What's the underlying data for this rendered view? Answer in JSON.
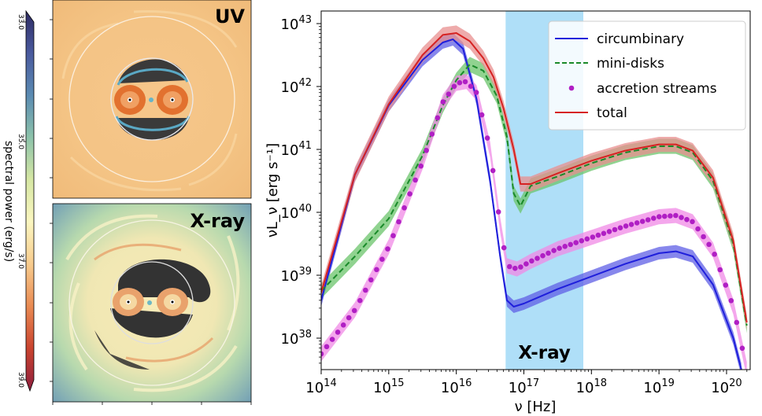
{
  "colorbar": {
    "label": "spectral power (erg/s)",
    "ticks": [
      "33.0",
      "35.0",
      "37.0",
      "39.0"
    ],
    "range": [
      33.0,
      39.0
    ],
    "colors": [
      "#2e2b63",
      "#4a5a9e",
      "#5b8bb2",
      "#8cc2aa",
      "#d6e7a4",
      "#fbf6c0",
      "#f7cb8d",
      "#e98a52",
      "#c9432f",
      "#8e1f3e"
    ]
  },
  "panels": [
    {
      "label": "UV"
    },
    {
      "label": "X-ray"
    }
  ],
  "chart_data": {
    "type": "line",
    "xlabel": "ν [Hz]",
    "ylabel": "νL_ν [erg s⁻¹]",
    "xscale": "log",
    "yscale": "log",
    "xlim_log10": [
      14,
      20.35
    ],
    "ylim_log10": [
      37.5,
      43.2
    ],
    "xticks": [
      {
        "exp": "14"
      },
      {
        "exp": "15"
      },
      {
        "exp": "16"
      },
      {
        "exp": "17"
      },
      {
        "exp": "18"
      },
      {
        "exp": "19"
      },
      {
        "exp": "20"
      }
    ],
    "yticks": [
      {
        "exp": "38"
      },
      {
        "exp": "39"
      },
      {
        "exp": "40"
      },
      {
        "exp": "41"
      },
      {
        "exp": "42"
      },
      {
        "exp": "43"
      }
    ],
    "band": {
      "label": "X-ray",
      "from_log10": 16.73,
      "to_log10": 17.88,
      "color": "#a6dbf7"
    },
    "series": [
      {
        "name": "circumbinary",
        "color": "#1f1fdb",
        "style": "solid",
        "band_color": "#5f5fe6",
        "band_width_dex": 0.1,
        "points": [
          [
            14.0,
            38.6
          ],
          [
            14.5,
            40.6
          ],
          [
            15.0,
            41.7
          ],
          [
            15.5,
            42.42
          ],
          [
            15.8,
            42.7
          ],
          [
            15.95,
            42.75
          ],
          [
            16.1,
            42.6
          ],
          [
            16.3,
            41.8
          ],
          [
            16.5,
            40.5
          ],
          [
            16.65,
            39.3
          ],
          [
            16.75,
            38.6
          ],
          [
            16.85,
            38.5
          ],
          [
            17.0,
            38.55
          ],
          [
            17.5,
            38.78
          ],
          [
            18.0,
            38.98
          ],
          [
            18.5,
            39.18
          ],
          [
            19.0,
            39.35
          ],
          [
            19.25,
            39.38
          ],
          [
            19.5,
            39.3
          ],
          [
            19.8,
            38.85
          ],
          [
            20.1,
            38.0
          ],
          [
            20.22,
            37.5
          ]
        ]
      },
      {
        "name": "mini-disks",
        "color": "#1a8a2a",
        "style": "dashed",
        "band_color": "#6bc46b",
        "band_width_dex": 0.12,
        "points": [
          [
            14.0,
            38.75
          ],
          [
            14.5,
            39.3
          ],
          [
            15.0,
            39.9
          ],
          [
            15.5,
            40.9
          ],
          [
            15.8,
            41.7
          ],
          [
            16.0,
            42.1
          ],
          [
            16.2,
            42.35
          ],
          [
            16.4,
            42.25
          ],
          [
            16.6,
            41.85
          ],
          [
            16.75,
            41.2
          ],
          [
            16.85,
            40.3
          ],
          [
            16.95,
            40.1
          ],
          [
            17.1,
            40.42
          ],
          [
            17.5,
            40.57
          ],
          [
            18.0,
            40.78
          ],
          [
            18.5,
            40.95
          ],
          [
            19.0,
            41.05
          ],
          [
            19.25,
            41.05
          ],
          [
            19.5,
            40.95
          ],
          [
            19.8,
            40.5
          ],
          [
            20.1,
            39.5
          ],
          [
            20.3,
            38.2
          ]
        ]
      },
      {
        "name": "accretion streams",
        "color": "#b01fc4",
        "style": "dots",
        "band_color": "#f08ae6",
        "band_width_dex": 0.12,
        "points": [
          [
            14.0,
            37.75
          ],
          [
            14.5,
            38.45
          ],
          [
            15.0,
            39.45
          ],
          [
            15.5,
            40.8
          ],
          [
            15.8,
            41.75
          ],
          [
            16.0,
            42.05
          ],
          [
            16.15,
            42.08
          ],
          [
            16.3,
            41.9
          ],
          [
            16.5,
            41.0
          ],
          [
            16.65,
            39.8
          ],
          [
            16.75,
            39.15
          ],
          [
            16.9,
            39.1
          ],
          [
            17.1,
            39.22
          ],
          [
            17.5,
            39.42
          ],
          [
            18.0,
            39.6
          ],
          [
            18.5,
            39.78
          ],
          [
            19.0,
            39.93
          ],
          [
            19.25,
            39.95
          ],
          [
            19.5,
            39.85
          ],
          [
            19.8,
            39.4
          ],
          [
            20.1,
            38.5
          ],
          [
            20.3,
            37.5
          ]
        ]
      },
      {
        "name": "total",
        "color": "#d62222",
        "style": "solid",
        "band_color": "#e88f8f",
        "band_width_dex": 0.12,
        "points": [
          [
            14.0,
            38.72
          ],
          [
            14.5,
            40.6
          ],
          [
            15.0,
            41.72
          ],
          [
            15.5,
            42.5
          ],
          [
            15.8,
            42.82
          ],
          [
            16.0,
            42.85
          ],
          [
            16.2,
            42.72
          ],
          [
            16.4,
            42.45
          ],
          [
            16.55,
            42.15
          ],
          [
            16.7,
            41.65
          ],
          [
            16.85,
            41.0
          ],
          [
            16.95,
            40.45
          ],
          [
            17.1,
            40.45
          ],
          [
            17.5,
            40.62
          ],
          [
            18.0,
            40.82
          ],
          [
            18.5,
            40.98
          ],
          [
            19.0,
            41.08
          ],
          [
            19.25,
            41.08
          ],
          [
            19.5,
            40.98
          ],
          [
            19.8,
            40.55
          ],
          [
            20.1,
            39.55
          ],
          [
            20.3,
            38.25
          ]
        ]
      }
    ]
  }
}
